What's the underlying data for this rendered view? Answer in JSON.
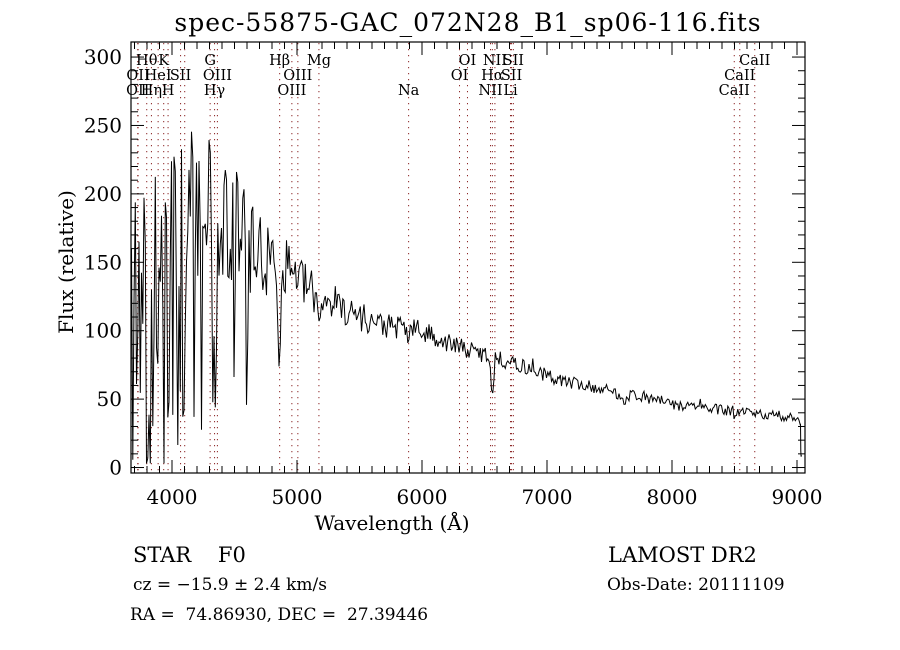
{
  "title": "spec-55875-GAC_072N28_B1_sp06-116.fits",
  "info": {
    "class_line": "STAR    F0",
    "survey_line": "LAMOST DR2",
    "cz_line": "cz = −15.9 ± 2.4 km/s",
    "obs_line": "Obs-Date: 20111109",
    "radec_line": "RA =  74.86930, DEC =  27.39446"
  },
  "colors": {
    "background": "#ffffff",
    "spectrum": "#000000",
    "axis": "#000000",
    "line_marker": "#8b2525"
  },
  "chart_data": {
    "type": "line",
    "title": "spec-55875-GAC_072N28_B1_sp06-116.fits",
    "xlabel": "Wavelength (Å)",
    "ylabel": "Flux (relative)",
    "xlim": [
      3672,
      9064
    ],
    "ylim": [
      -4,
      311
    ],
    "xticks": [
      4000,
      5000,
      6000,
      7000,
      8000,
      9000
    ],
    "yticks": [
      0,
      50,
      100,
      150,
      200,
      250,
      300
    ],
    "x_minor_step": 100,
    "y_minor_step": 10,
    "grid": false,
    "legend": "none",
    "spectral_lines": [
      {
        "label": "Hθ",
        "row": 1,
        "wl": 3797.9
      },
      {
        "label": "K",
        "row": 1,
        "wl": 3933.7
      },
      {
        "label": "G",
        "row": 1,
        "wl": 4305.0
      },
      {
        "label": "Hβ",
        "row": 1,
        "wl": 4861.3
      },
      {
        "label": "Mg",
        "row": 1,
        "wl": 5175.4
      },
      {
        "label": "OI",
        "row": 1,
        "wl": 6363.8
      },
      {
        "label": "NII",
        "row": 1,
        "wl": 6583.3
      },
      {
        "label": "SII",
        "row": 1,
        "wl": 6730.7
      },
      {
        "label": "CaII",
        "row": 1,
        "wl": 8662.1
      },
      {
        "label": "OII",
        "row": 2,
        "wl": 3728.8
      },
      {
        "label": "HeI",
        "row": 2,
        "wl": 3889.0
      },
      {
        "label": "SII",
        "row": 2,
        "wl": 4068.6
      },
      {
        "label": "OIII",
        "row": 2,
        "wl": 4363.2
      },
      {
        "label": "OIII",
        "row": 2,
        "wl": 5006.8
      },
      {
        "label": "OI",
        "row": 2,
        "wl": 6300.2
      },
      {
        "label": "Hα",
        "row": 2,
        "wl": 6562.8
      },
      {
        "label": "SII",
        "row": 2,
        "wl": 6716.3
      },
      {
        "label": "CaII",
        "row": 2,
        "wl": 8542.1
      },
      {
        "label": "OII",
        "row": 3,
        "wl": 3726.0
      },
      {
        "label": "Hη",
        "row": 3,
        "wl": 3835.4
      },
      {
        "label": "H",
        "row": 3,
        "wl": 3968.5
      },
      {
        "label": "Hγ",
        "row": 3,
        "wl": 4340.5
      },
      {
        "label": "OIII",
        "row": 3,
        "wl": 4958.9
      },
      {
        "label": "Na",
        "row": 3,
        "wl": 5893.0
      },
      {
        "label": "NII",
        "row": 3,
        "wl": 6548.0
      },
      {
        "label": "Li",
        "row": 3,
        "wl": 6707.9
      },
      {
        "label": "CaII",
        "row": 3,
        "wl": 8498.0
      },
      {
        "label": "",
        "row": 0,
        "wl": 4101.7
      }
    ],
    "spectrum_model": {
      "seed": 13,
      "step_angstrom": 10,
      "range": [
        3676,
        9026
      ],
      "continuum": [
        [
          3676,
          145
        ],
        [
          3720,
          165
        ],
        [
          3760,
          150
        ],
        [
          3800,
          150
        ],
        [
          3840,
          145
        ],
        [
          3880,
          155
        ],
        [
          3920,
          160
        ],
        [
          3960,
          165
        ],
        [
          4000,
          175
        ],
        [
          4040,
          185
        ],
        [
          4080,
          170
        ],
        [
          4120,
          175
        ],
        [
          4160,
          200
        ],
        [
          4200,
          180
        ],
        [
          4240,
          170
        ],
        [
          4280,
          195
        ],
        [
          4320,
          185
        ],
        [
          4360,
          170
        ],
        [
          4400,
          180
        ],
        [
          4440,
          175
        ],
        [
          4480,
          170
        ],
        [
          4520,
          178
        ],
        [
          4560,
          182
        ],
        [
          4600,
          168
        ],
        [
          4650,
          158
        ],
        [
          4700,
          152
        ],
        [
          4750,
          150
        ],
        [
          4800,
          152
        ],
        [
          4861,
          148
        ],
        [
          4900,
          150
        ],
        [
          4950,
          146
        ],
        [
          5000,
          142
        ],
        [
          5050,
          134
        ],
        [
          5100,
          130
        ],
        [
          5176,
          124
        ],
        [
          5250,
          123
        ],
        [
          5320,
          120
        ],
        [
          5400,
          115
        ],
        [
          5500,
          111
        ],
        [
          5600,
          107
        ],
        [
          5700,
          104
        ],
        [
          5800,
          102
        ],
        [
          5900,
          103
        ],
        [
          6000,
          99
        ],
        [
          6100,
          96
        ],
        [
          6200,
          91
        ],
        [
          6300,
          88
        ],
        [
          6400,
          85
        ],
        [
          6500,
          83
        ],
        [
          6600,
          80
        ],
        [
          6700,
          77
        ],
        [
          6800,
          74
        ],
        [
          6900,
          71
        ],
        [
          7000,
          67
        ],
        [
          7100,
          64
        ],
        [
          7200,
          62
        ],
        [
          7300,
          60
        ],
        [
          7400,
          58
        ],
        [
          7500,
          56
        ],
        [
          7600,
          53
        ],
        [
          7700,
          53
        ],
        [
          7800,
          51
        ],
        [
          7900,
          49
        ],
        [
          8000,
          46
        ],
        [
          8100,
          45
        ],
        [
          8200,
          45
        ],
        [
          8300,
          43
        ],
        [
          8400,
          42
        ],
        [
          8500,
          41
        ],
        [
          8600,
          40
        ],
        [
          8700,
          39
        ],
        [
          8800,
          38
        ],
        [
          8900,
          37
        ],
        [
          9000,
          37
        ],
        [
          9026,
          35
        ]
      ],
      "noise": [
        [
          3676,
          115
        ],
        [
          3750,
          110
        ],
        [
          3800,
          100
        ],
        [
          3850,
          95
        ],
        [
          3900,
          85
        ],
        [
          3950,
          80
        ],
        [
          4000,
          72
        ],
        [
          4100,
          62
        ],
        [
          4200,
          55
        ],
        [
          4300,
          50
        ],
        [
          4400,
          45
        ],
        [
          4500,
          42
        ],
        [
          4600,
          38
        ],
        [
          4700,
          32
        ],
        [
          4800,
          26
        ],
        [
          4900,
          22
        ],
        [
          5000,
          18
        ],
        [
          5100,
          16
        ],
        [
          5200,
          14
        ],
        [
          5400,
          12
        ],
        [
          5600,
          10
        ],
        [
          5800,
          9
        ],
        [
          6000,
          8
        ],
        [
          6300,
          7
        ],
        [
          6600,
          6
        ],
        [
          7000,
          5
        ],
        [
          7500,
          4.5
        ],
        [
          8000,
          4
        ],
        [
          8500,
          4
        ],
        [
          9026,
          4
        ]
      ],
      "absorptions": [
        [
          3726,
          15,
          0.5
        ],
        [
          3798,
          22,
          0.7
        ],
        [
          3835,
          22,
          0.8
        ],
        [
          3889,
          22,
          0.78
        ],
        [
          3934,
          18,
          0.7
        ],
        [
          3970,
          22,
          0.78
        ],
        [
          4102,
          26,
          0.68
        ],
        [
          4340,
          26,
          0.6
        ],
        [
          4861,
          26,
          0.45
        ],
        [
          5176,
          20,
          0.12
        ],
        [
          5893,
          18,
          0.12
        ],
        [
          6563,
          22,
          0.38
        ],
        [
          7620,
          30,
          0.08
        ],
        [
          8498,
          12,
          0.08
        ],
        [
          8542,
          12,
          0.1
        ],
        [
          8662,
          12,
          0.08
        ]
      ],
      "spikes": [
        [
          4152,
          8,
          40
        ],
        [
          4570,
          7,
          30
        ],
        [
          6890,
          6,
          14
        ],
        [
          7710,
          6,
          12
        ],
        [
          8230,
          6,
          9
        ]
      ],
      "end_drop": [
        [
          9028,
          32
        ],
        [
          9030,
          12
        ],
        [
          9033,
          8
        ],
        [
          9036,
          9
        ]
      ]
    }
  }
}
